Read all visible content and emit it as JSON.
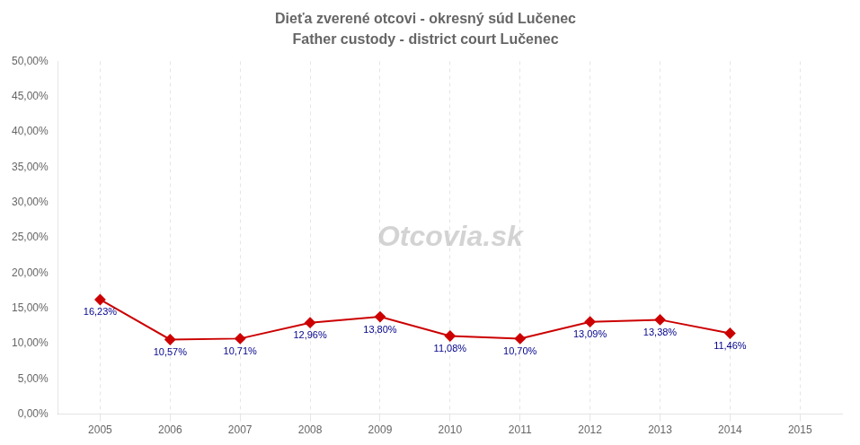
{
  "chart_data": {
    "type": "line",
    "title": "Dieťa zverené otcovi - okresný súd Lučenec",
    "subtitle": "Father custody - district court Lučenec",
    "x": [
      2005,
      2006,
      2007,
      2008,
      2009,
      2010,
      2011,
      2012,
      2013,
      2014
    ],
    "values": [
      0.1623,
      0.1057,
      0.1071,
      0.1296,
      0.138,
      0.1108,
      0.107,
      0.1309,
      0.1338,
      0.1146
    ],
    "value_labels": [
      "16,23%",
      "10,57%",
      "10,71%",
      "12,96%",
      "13,80%",
      "11,08%",
      "10,70%",
      "13,09%",
      "13,38%",
      "11,46%"
    ],
    "data_labels": true,
    "color": "#CC0000",
    "marker": "diamond",
    "line_style": "solid",
    "xlim": [
      2004.4,
      2015.6
    ],
    "xticks": [
      2005,
      2006,
      2007,
      2008,
      2009,
      2010,
      2011,
      2012,
      2013,
      2014,
      2015
    ],
    "ylim": [
      0,
      0.5
    ],
    "yticks": [
      {
        "value": 0.0,
        "label": "0,00%"
      },
      {
        "value": 0.05,
        "label": "5,00%"
      },
      {
        "value": 0.1,
        "label": "10,00%"
      },
      {
        "value": 0.15,
        "label": "15,00%"
      },
      {
        "value": 0.2,
        "label": "20,00%"
      },
      {
        "value": 0.25,
        "label": "25,00%"
      },
      {
        "value": 0.3,
        "label": "30,00%"
      },
      {
        "value": 0.35,
        "label": "35,00%"
      },
      {
        "value": 0.4,
        "label": "40,00%"
      },
      {
        "value": 0.45,
        "label": "45,00%"
      },
      {
        "value": 0.5,
        "label": "50,00%"
      }
    ],
    "grid": "x",
    "annotations": [
      "Otcovia.sk"
    ]
  }
}
